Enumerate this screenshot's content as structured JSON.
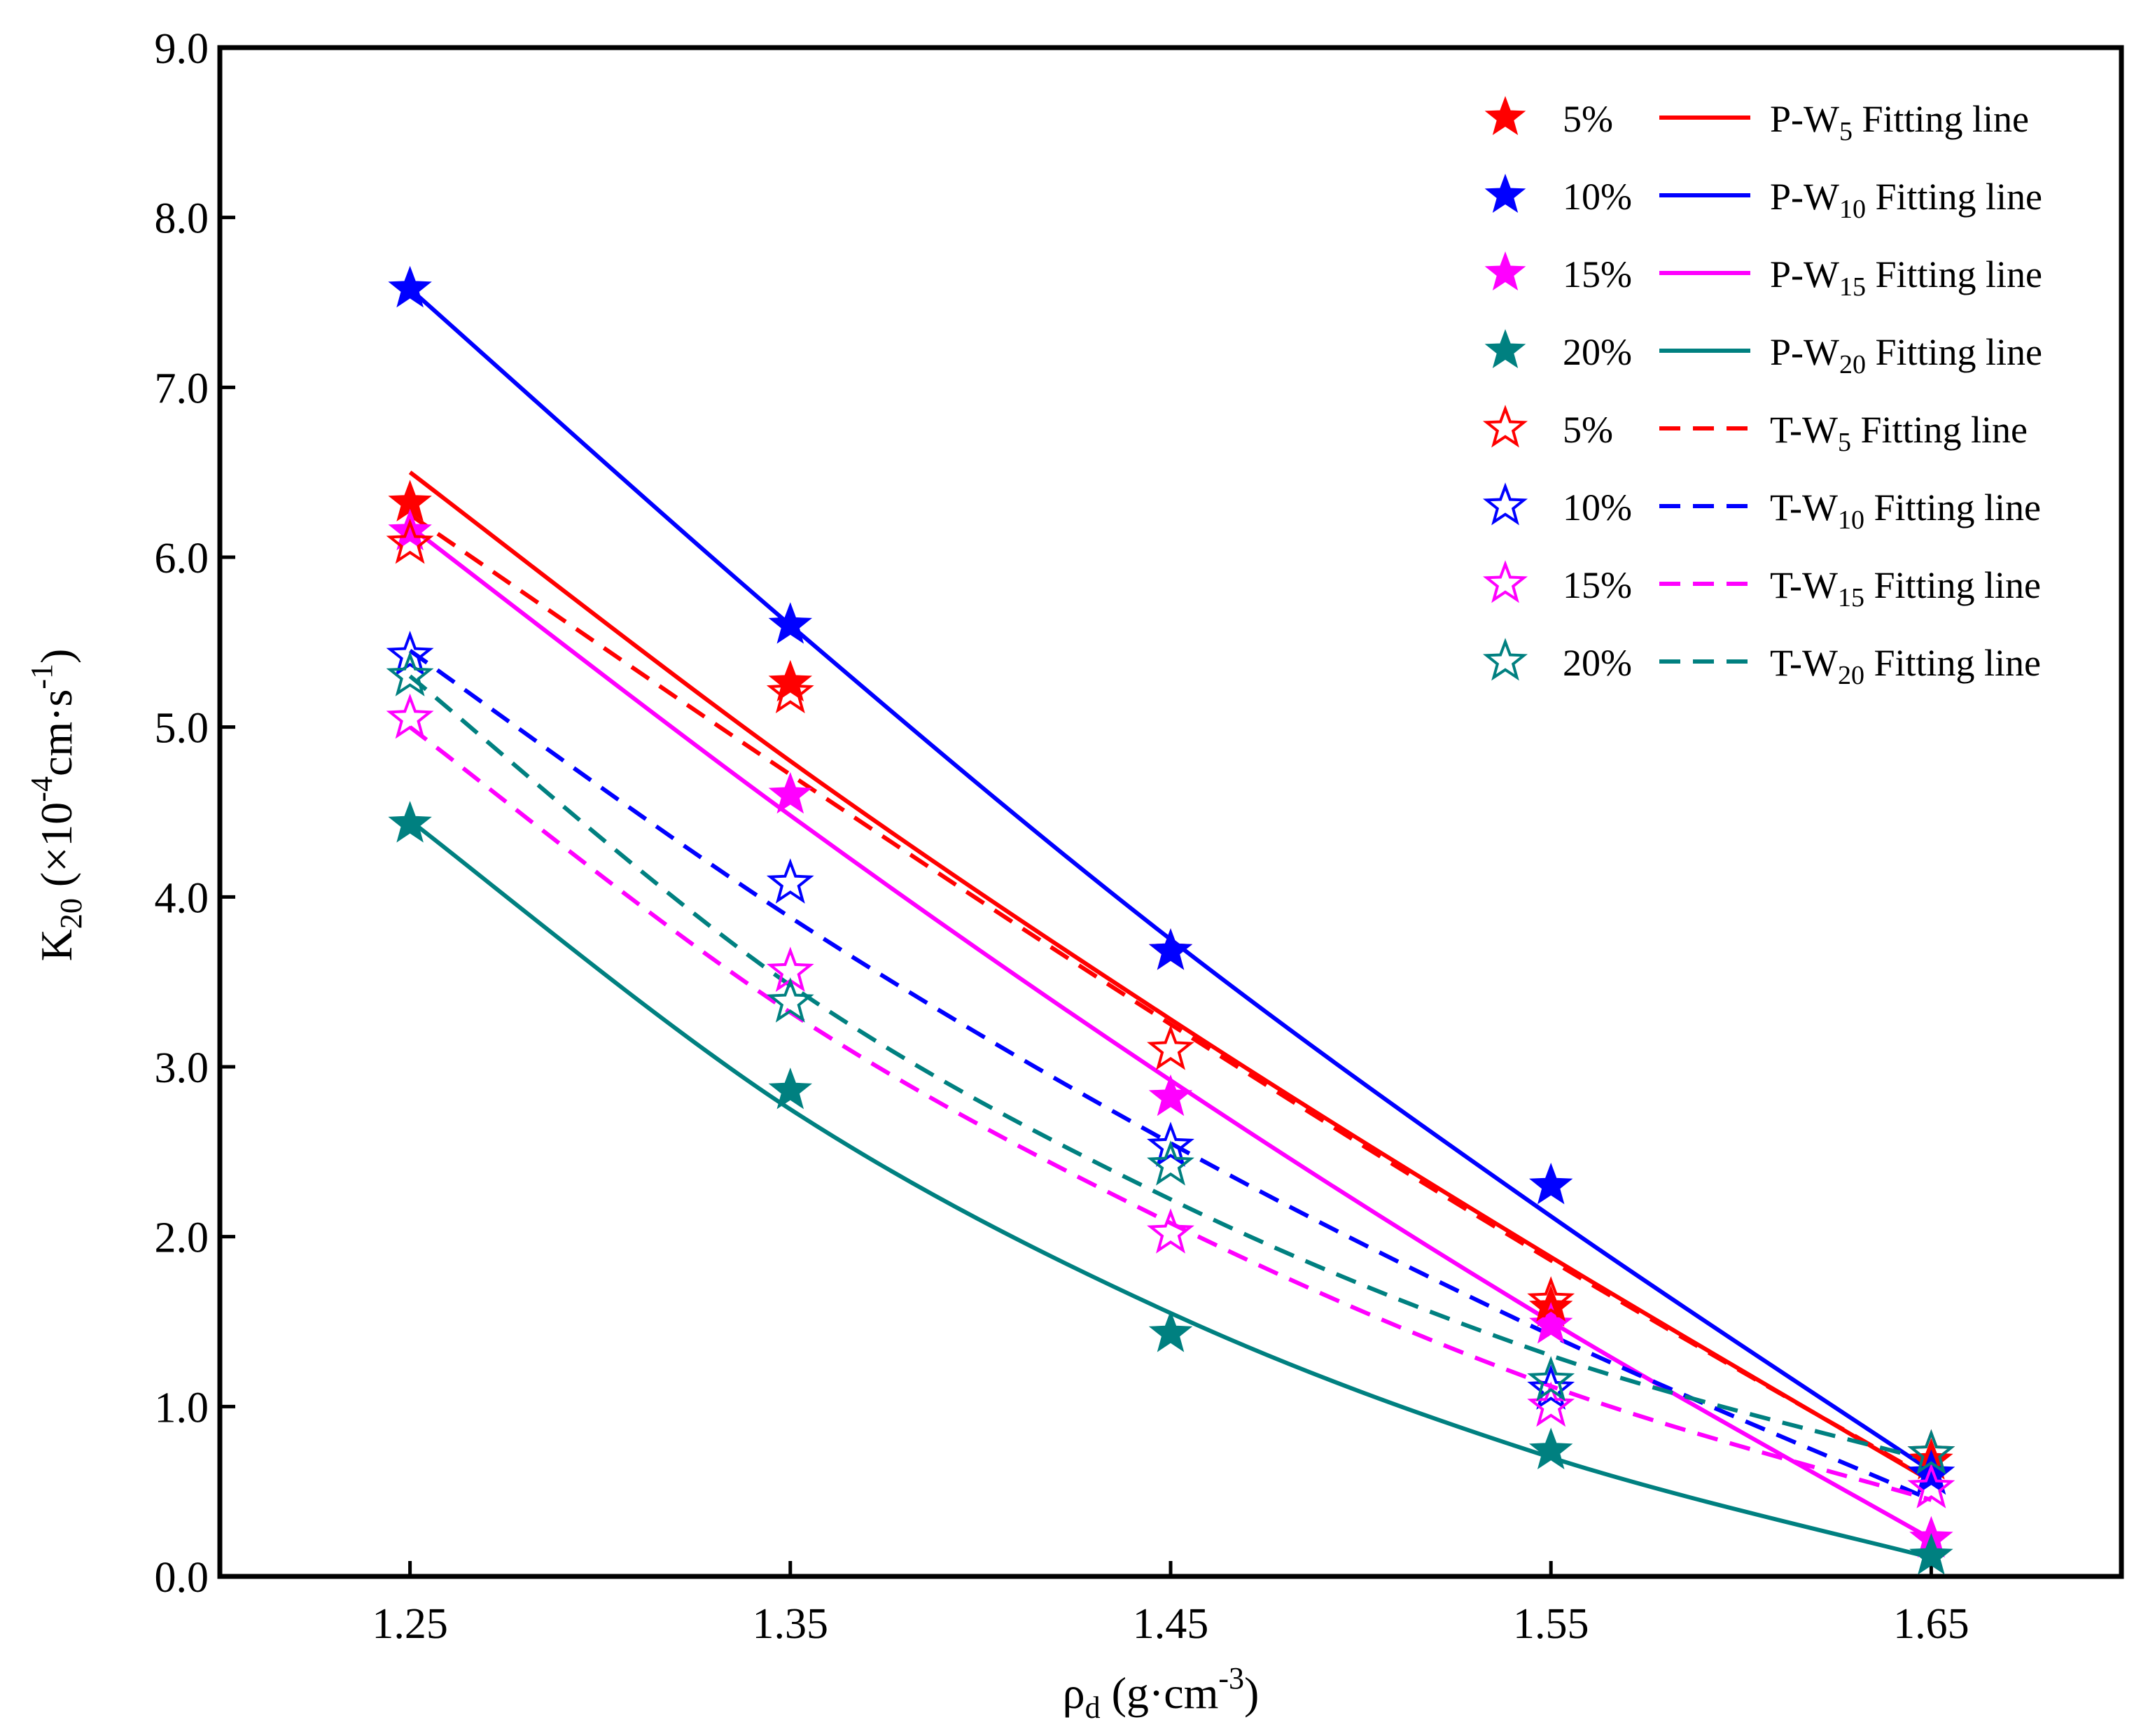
{
  "chart_data": {
    "type": "scatter",
    "title": "",
    "xlabel": {
      "main": "ρ",
      "sub": "d",
      "unit_open": " (g·cm",
      "unit_sup": "-3",
      "unit_close": ")"
    },
    "ylabel": {
      "main": "K",
      "sub": "20",
      "unit_open": " (×10",
      "unit_sup": "-4",
      "unit_mid": "cm·s",
      "unit_sup2": "-1",
      "unit_close": ")"
    },
    "xlim": [
      1.2,
      1.7
    ],
    "ylim": [
      0.0,
      9.0
    ],
    "xticks": [
      1.25,
      1.35,
      1.45,
      1.55,
      1.65
    ],
    "xtick_labels": [
      "1.25",
      "1.35",
      "1.45",
      "1.55",
      "1.65"
    ],
    "yticks": [
      0.0,
      1.0,
      2.0,
      3.0,
      4.0,
      5.0,
      6.0,
      7.0,
      8.0,
      9.0
    ],
    "ytick_labels": [
      "0.0",
      "1.0",
      "2.0",
      "3.0",
      "4.0",
      "5.0",
      "6.0",
      "7.0",
      "8.0",
      "9.0"
    ],
    "legend_position": "top-right",
    "x": [
      1.25,
      1.35,
      1.45,
      1.55,
      1.65
    ],
    "series": [
      {
        "id": "p-w5",
        "marker_label": "5%",
        "line_prefix": "P-W",
        "line_sub": "5",
        "line_suffix": " Fitting line",
        "color": "#ff0000",
        "marker": "filled-star",
        "line_style": "solid",
        "values": [
          6.32,
          5.26,
          3.68,
          1.58,
          0.68
        ],
        "fit": [
          6.5,
          4.8,
          3.28,
          1.88,
          0.56
        ]
      },
      {
        "id": "p-w10",
        "marker_label": "10%",
        "line_prefix": "P-W",
        "line_sub": "10",
        "line_suffix": " Fitting line",
        "color": "#0000ff",
        "marker": "filled-star",
        "line_style": "solid",
        "values": [
          7.58,
          5.6,
          3.68,
          2.3,
          0.6
        ],
        "fit": [
          7.58,
          5.6,
          3.75,
          2.12,
          0.62
        ]
      },
      {
        "id": "p-w15",
        "marker_label": "15%",
        "line_prefix": "P-W",
        "line_sub": "15",
        "line_suffix": " Fitting line",
        "color": "#ff00ff",
        "marker": "filled-star",
        "line_style": "solid",
        "values": [
          6.15,
          4.6,
          2.82,
          1.48,
          0.22
        ],
        "fit": [
          6.18,
          4.48,
          2.92,
          1.5,
          0.22
        ]
      },
      {
        "id": "p-w20",
        "marker_label": "20%",
        "line_prefix": "P-W",
        "line_sub": "20",
        "line_suffix": " Fitting line",
        "color": "#008080",
        "marker": "filled-star",
        "line_style": "solid",
        "values": [
          4.43,
          2.86,
          1.43,
          0.74,
          0.12
        ],
        "fit": [
          4.45,
          2.75,
          1.55,
          0.7,
          0.11
        ]
      },
      {
        "id": "t-w5",
        "marker_label": "5%",
        "line_prefix": "T-W",
        "line_sub": "5",
        "line_suffix": " Fitting line",
        "color": "#ff0000",
        "marker": "open-star",
        "line_style": "dashed",
        "values": [
          6.08,
          5.2,
          3.1,
          1.62,
          0.72
        ],
        "fit": [
          6.25,
          4.72,
          3.25,
          1.86,
          0.57
        ]
      },
      {
        "id": "t-w10",
        "marker_label": "10%",
        "line_prefix": "T-W",
        "line_sub": "10",
        "line_suffix": " Fitting line",
        "color": "#0000ff",
        "marker": "open-star",
        "line_style": "dashed",
        "values": [
          5.42,
          4.08,
          2.53,
          1.1,
          0.6
        ],
        "fit": [
          5.45,
          3.88,
          2.55,
          1.42,
          0.45
        ]
      },
      {
        "id": "t-w15",
        "marker_label": "15%",
        "line_prefix": "T-W",
        "line_sub": "15",
        "line_suffix": " Fitting line",
        "color": "#ff00ff",
        "marker": "open-star",
        "line_style": "dashed",
        "values": [
          5.05,
          3.56,
          2.02,
          1.0,
          0.52
        ],
        "fit": [
          5.0,
          3.32,
          2.08,
          1.12,
          0.45
        ]
      },
      {
        "id": "t-w20",
        "marker_label": "20%",
        "line_prefix": "T-W",
        "line_sub": "20",
        "line_suffix": " Fitting line",
        "color": "#008080",
        "marker": "open-star",
        "line_style": "dashed",
        "values": [
          5.3,
          3.38,
          2.42,
          1.15,
          0.72
        ],
        "fit": [
          5.3,
          3.48,
          2.22,
          1.3,
          0.68
        ]
      }
    ]
  }
}
